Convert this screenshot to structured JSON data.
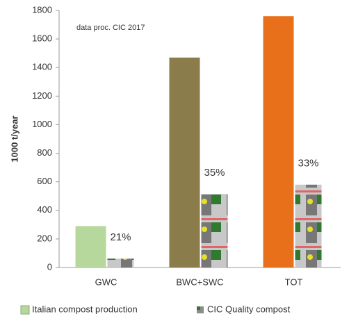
{
  "chart_data": {
    "type": "bar",
    "annotation": "data proc. CIC 2017",
    "y_label": "1000 t/year",
    "categories": [
      "GWC",
      "BWC+SWC",
      "TOT"
    ],
    "series": [
      {
        "name": "Italian compost production",
        "color": "#b7d89c",
        "colors": [
          "#b7d89c",
          "#8b7d4b",
          "#e8701a"
        ],
        "values": [
          290,
          1470,
          1760
        ]
      },
      {
        "name": "CIC Quality compost",
        "color": "#8c8c8c",
        "values": [
          62,
          515,
          580
        ]
      }
    ],
    "bar_annotations": [
      "21%",
      "35%",
      "33%"
    ],
    "ylim": [
      0,
      1800
    ],
    "yticks": [
      0,
      200,
      400,
      600,
      800,
      1000,
      1200,
      1400,
      1600,
      1800
    ],
    "grid": false
  }
}
